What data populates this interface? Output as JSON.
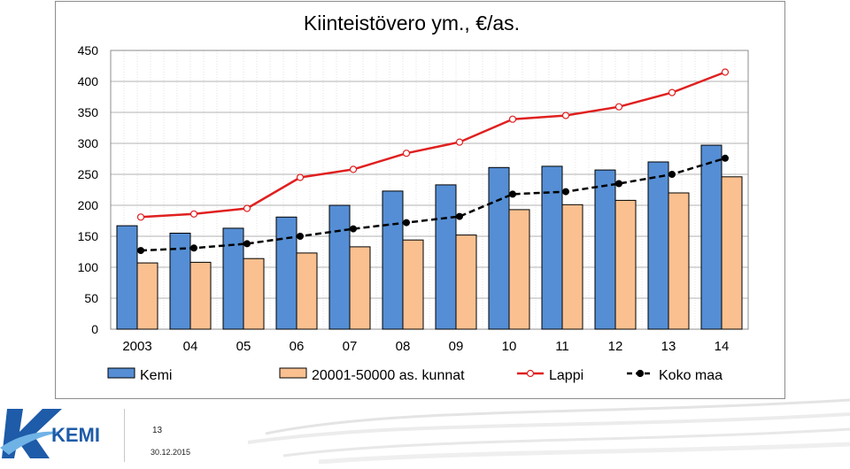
{
  "chart_data": {
    "type": "bar",
    "title": "Kiinteistövero ym., €/as.",
    "categories": [
      "2003",
      "04",
      "05",
      "06",
      "07",
      "08",
      "09",
      "10",
      "11",
      "12",
      "13",
      "14"
    ],
    "ylim": [
      0,
      450
    ],
    "yticks": [
      0,
      50,
      100,
      150,
      200,
      250,
      300,
      350,
      400,
      450
    ],
    "grid": true,
    "legend_position": "bottom",
    "series": [
      {
        "name": "Kemi",
        "kind": "bar",
        "color": "#558ed5",
        "values": [
          167,
          155,
          163,
          181,
          200,
          223,
          233,
          261,
          263,
          257,
          270,
          297
        ]
      },
      {
        "name": "20001-50000 as. kunnat",
        "kind": "bar",
        "color": "#fac090",
        "values": [
          107,
          108,
          114,
          123,
          133,
          144,
          152,
          193,
          201,
          208,
          220,
          246
        ]
      },
      {
        "name": "Lappi",
        "kind": "line",
        "color": "#e02020",
        "dashed": false,
        "marker": "open-circle",
        "values": [
          181,
          186,
          195,
          245,
          258,
          284,
          302,
          339,
          345,
          359,
          382,
          415
        ]
      },
      {
        "name": "Koko maa",
        "kind": "line",
        "color": "#000000",
        "dashed": true,
        "marker": "filled-circle",
        "values": [
          127,
          131,
          138,
          150,
          162,
          172,
          182,
          218,
          222,
          235,
          250,
          276
        ]
      }
    ]
  },
  "footer": {
    "logo_text": "KEMI",
    "page_number": "13",
    "date": "30.12.2015"
  }
}
